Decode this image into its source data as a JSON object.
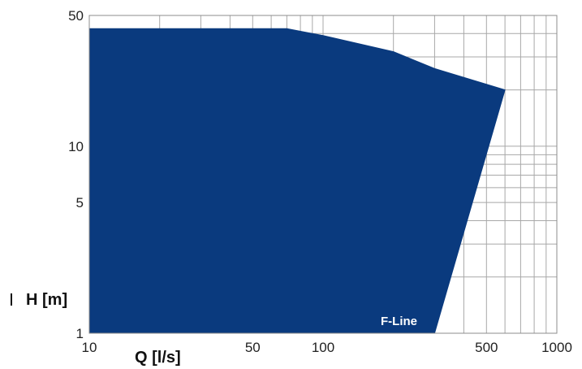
{
  "chart_data": {
    "type": "area",
    "xlabel": "Q [l/s]",
    "ylabel": "H [m]",
    "x_scale": "log",
    "y_scale": "log",
    "xlim": [
      10,
      1000
    ],
    "ylim": [
      1,
      50
    ],
    "x_tick_labels": [
      "10",
      "50",
      "100",
      "500",
      "1000"
    ],
    "y_tick_labels": [
      "1",
      "5",
      "10",
      "50"
    ],
    "x_gridlines": [
      10,
      20,
      30,
      40,
      50,
      60,
      70,
      80,
      90,
      100,
      200,
      300,
      400,
      500,
      600,
      700,
      800,
      900,
      1000
    ],
    "y_gridlines": [
      1,
      2,
      3,
      4,
      5,
      6,
      7,
      8,
      9,
      10,
      20,
      30,
      40,
      50
    ],
    "grid": true,
    "series": [
      {
        "name": "F-Line",
        "color": "#0a3a7e",
        "boundary": [
          {
            "x": 10,
            "y": 1
          },
          {
            "x": 10,
            "y": 42.5
          },
          {
            "x": 70,
            "y": 42.5
          },
          {
            "x": 100,
            "y": 39
          },
          {
            "x": 200,
            "y": 32
          },
          {
            "x": 300,
            "y": 26
          },
          {
            "x": 600,
            "y": 20
          },
          {
            "x": 300,
            "y": 1
          }
        ]
      }
    ]
  }
}
